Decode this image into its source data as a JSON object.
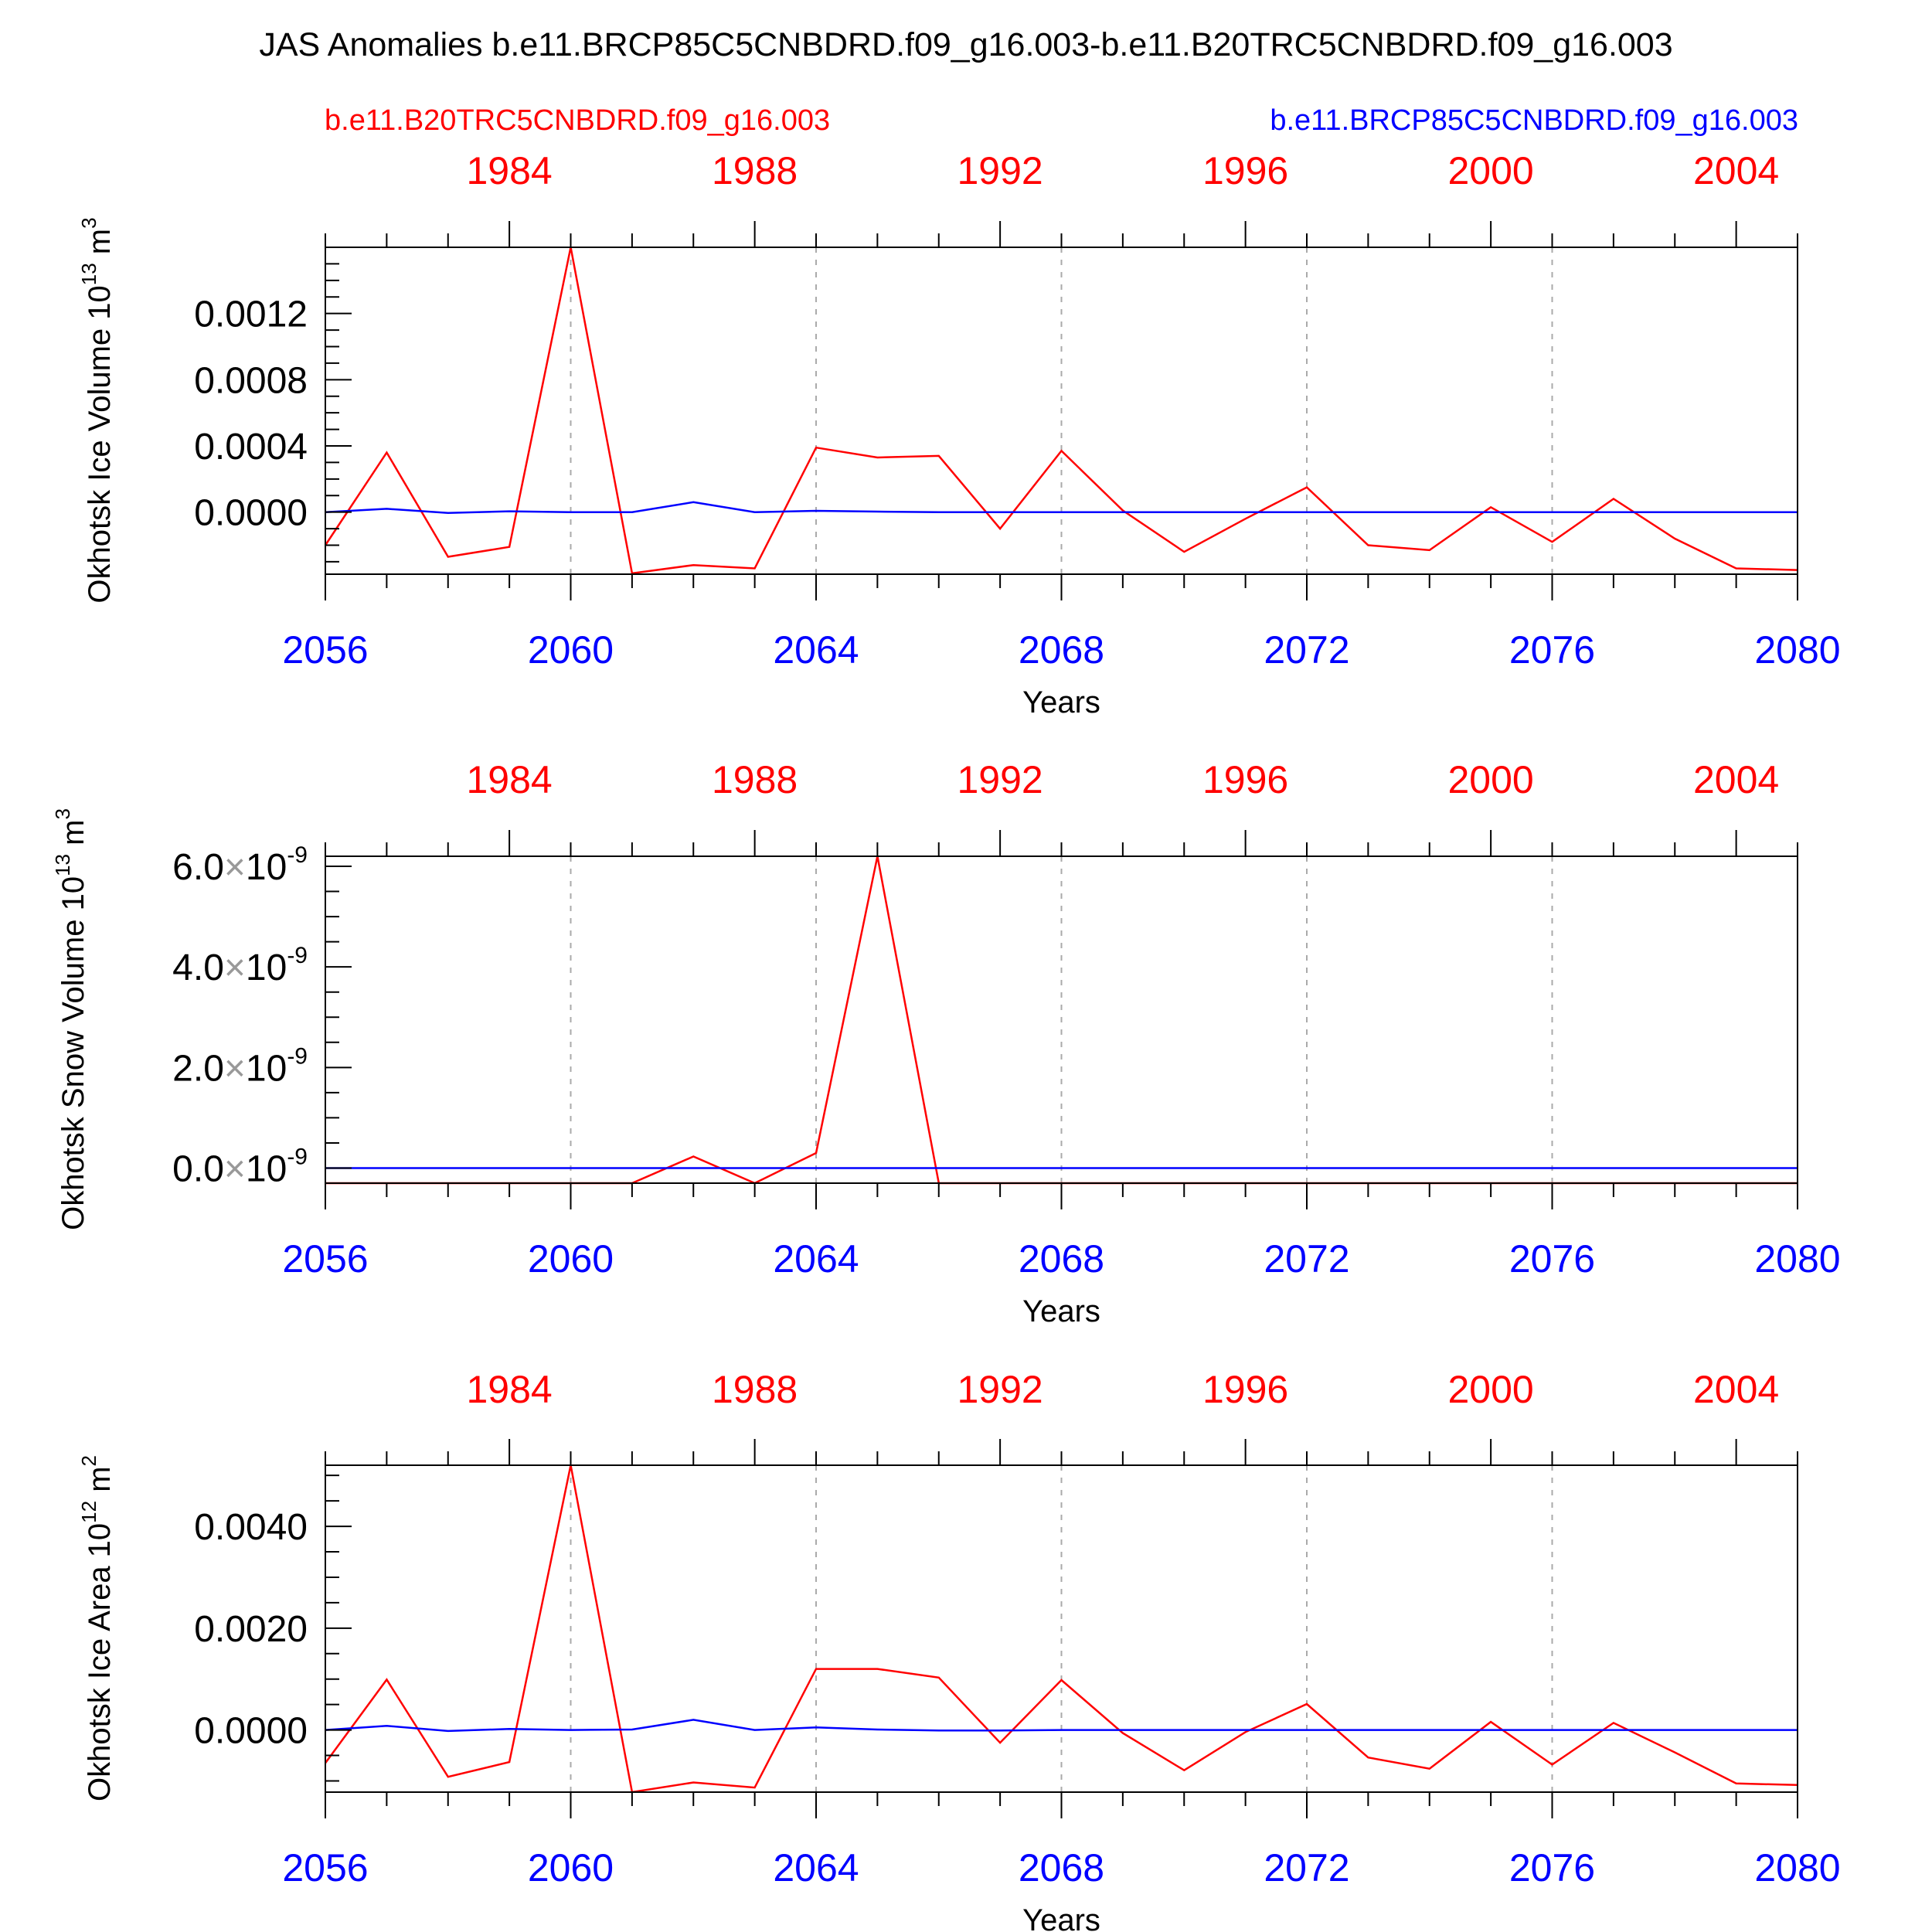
{
  "title": "JAS Anomalies b.e11.BRCP85C5CNBDRD.f09_g16.003-b.e11.B20TRC5CNBDRD.f09_g16.003",
  "legend": {
    "left_label": "b.e11.B20TRC5CNBDRD.f09_g16.003",
    "left_color": "#ff0000",
    "right_label": "b.e11.BRCP85C5CNBDRD.f09_g16.003",
    "right_color": "#0000ff"
  },
  "colors": {
    "axis": "#000000",
    "grid": "#aaaaaa",
    "red": "#ff0000",
    "blue": "#0000ff"
  },
  "chart_data": [
    {
      "type": "line",
      "ylabel": "Okhotsk Ice Volume 10",
      "ylabel_sup": "13",
      "ylabel_unit": "m",
      "ylabel_unit_sup": "3",
      "xlabel": "Years",
      "x": [
        2056,
        2057,
        2058,
        2059,
        2060,
        2061,
        2062,
        2063,
        2064,
        2065,
        2066,
        2067,
        2068,
        2069,
        2070,
        2071,
        2072,
        2073,
        2074,
        2075,
        2076,
        2077,
        2078,
        2079,
        2080
      ],
      "xlim": [
        2056,
        2080
      ],
      "ylim": [
        -0.000375,
        0.0016
      ],
      "x_ticks": [
        "2056",
        "2060",
        "2064",
        "2068",
        "2072",
        "2076",
        "2080"
      ],
      "top_ticks": [
        "1984",
        "1988",
        "1992",
        "1996",
        "2000",
        "2004"
      ],
      "top_tick_x": [
        2059,
        2063,
        2067,
        2071,
        2075,
        2079
      ],
      "y_ticks": [
        0,
        0.0004,
        0.0008,
        0.0012
      ],
      "y_tick_labels": [
        "0.0000",
        "0.0004",
        "0.0008",
        "0.0012"
      ],
      "grid": "vertical dashed",
      "series": [
        {
          "color": "#ff0000",
          "values": [
            -0.0002,
            0.00036,
            -0.00027,
            -0.00021,
            0.0016,
            -0.00037,
            -0.00032,
            -0.00034,
            0.00039,
            0.00033,
            0.00034,
            -0.0001,
            0.00037,
            1e-05,
            -0.00024,
            -4e-05,
            0.00015,
            -0.0002,
            -0.00023,
            3e-05,
            -0.00018,
            8e-05,
            -0.00016,
            -0.00034,
            -0.00035
          ]
        },
        {
          "color": "#0000ff",
          "values": [
            0,
            2e-05,
            -5e-06,
            5e-06,
            0,
            0,
            6e-05,
            0,
            8e-06,
            3e-06,
            0,
            0,
            0,
            0,
            0,
            0,
            0,
            0,
            0,
            0,
            0,
            0,
            0,
            0,
            0
          ]
        }
      ]
    },
    {
      "type": "line",
      "ylabel": "Okhotsk Snow Volume 10",
      "ylabel_sup": "13",
      "ylabel_unit": "m",
      "ylabel_unit_sup": "3",
      "xlabel": "Years",
      "x": [
        2056,
        2057,
        2058,
        2059,
        2060,
        2061,
        2062,
        2063,
        2064,
        2065,
        2066,
        2067,
        2068,
        2069,
        2070,
        2071,
        2072,
        2073,
        2074,
        2075,
        2076,
        2077,
        2078,
        2079,
        2080
      ],
      "xlim": [
        2056,
        2080
      ],
      "ylim": [
        -3e-10,
        6.2e-09
      ],
      "x_ticks": [
        "2056",
        "2060",
        "2064",
        "2068",
        "2072",
        "2076",
        "2080"
      ],
      "top_ticks": [
        "1984",
        "1988",
        "1992",
        "1996",
        "2000",
        "2004"
      ],
      "top_tick_x": [
        2059,
        2063,
        2067,
        2071,
        2075,
        2079
      ],
      "y_ticks": [
        0,
        2e-09,
        4e-09,
        6e-09
      ],
      "y_tick_mantissa": [
        "0.0",
        "2.0",
        "4.0",
        "6.0"
      ],
      "y_tick_times": "×",
      "y_tick_base": "10",
      "y_tick_exp": "-9",
      "grid": "vertical dashed",
      "series": [
        {
          "color": "#ff0000",
          "values": [
            -3e-10,
            -3e-10,
            -3e-10,
            -3e-10,
            -3e-10,
            -3e-10,
            2.3e-10,
            -3e-10,
            3e-10,
            6.2e-09,
            -3e-10,
            -3e-10,
            -3e-10,
            -3e-10,
            -3e-10,
            -3e-10,
            -3e-10,
            -3e-10,
            -3e-10,
            -3e-10,
            -3e-10,
            -3e-10,
            -3e-10,
            -3e-10,
            -3e-10
          ]
        },
        {
          "color": "#0000ff",
          "values": [
            0,
            0,
            0,
            0,
            0,
            0,
            0,
            0,
            0,
            0,
            0,
            0,
            0,
            0,
            0,
            0,
            0,
            0,
            0,
            0,
            0,
            0,
            0,
            0,
            0
          ]
        }
      ]
    },
    {
      "type": "line",
      "ylabel": "Okhotsk Ice Area 10",
      "ylabel_sup": "12",
      "ylabel_unit": "m",
      "ylabel_unit_sup": "2",
      "xlabel": "Years",
      "x": [
        2056,
        2057,
        2058,
        2059,
        2060,
        2061,
        2062,
        2063,
        2064,
        2065,
        2066,
        2067,
        2068,
        2069,
        2070,
        2071,
        2072,
        2073,
        2074,
        2075,
        2076,
        2077,
        2078,
        2079,
        2080
      ],
      "xlim": [
        2056,
        2080
      ],
      "ylim": [
        -0.00122,
        0.0052
      ],
      "x_ticks": [
        "2056",
        "2060",
        "2064",
        "2068",
        "2072",
        "2076",
        "2080"
      ],
      "top_ticks": [
        "1984",
        "1988",
        "1992",
        "1996",
        "2000",
        "2004"
      ],
      "top_tick_x": [
        2059,
        2063,
        2067,
        2071,
        2075,
        2079
      ],
      "y_ticks": [
        0,
        0.002,
        0.004
      ],
      "y_tick_labels": [
        "0.0000",
        "0.0020",
        "0.0040"
      ],
      "grid": "vertical dashed",
      "series": [
        {
          "color": "#ff0000",
          "values": [
            -0.00065,
            0.00099,
            -0.00092,
            -0.00063,
            0.0052,
            -0.00122,
            -0.00103,
            -0.00113,
            0.0012,
            0.0012,
            0.00103,
            -0.00025,
            0.00098,
            -6e-05,
            -0.00079,
            -4e-05,
            0.00051,
            -0.00054,
            -0.00076,
            0.00016,
            -0.00068,
            0.00014,
            -0.00044,
            -0.00105,
            -0.00108
          ]
        },
        {
          "color": "#0000ff",
          "values": [
            0,
            8e-05,
            -2e-05,
            2e-05,
            0,
            1e-05,
            0.0002,
            0,
            5e-05,
            1e-05,
            -1e-05,
            -1e-05,
            0,
            0,
            0,
            0,
            0,
            0,
            0,
            0,
            0,
            0,
            0,
            0,
            0
          ]
        }
      ]
    }
  ]
}
